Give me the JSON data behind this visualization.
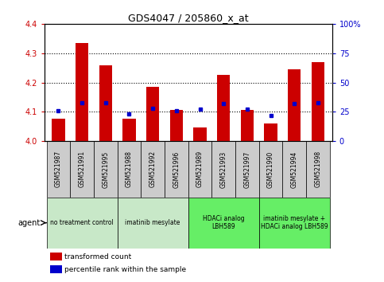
{
  "title": "GDS4047 / 205860_x_at",
  "samples": [
    "GSM521987",
    "GSM521991",
    "GSM521995",
    "GSM521988",
    "GSM521992",
    "GSM521996",
    "GSM521989",
    "GSM521993",
    "GSM521997",
    "GSM521990",
    "GSM521994",
    "GSM521998"
  ],
  "bar_values": [
    4.075,
    4.335,
    4.26,
    4.075,
    4.185,
    4.105,
    4.045,
    4.225,
    4.105,
    4.06,
    4.245,
    4.27
  ],
  "percentile_values": [
    26,
    33,
    33,
    23,
    28,
    26,
    27,
    32,
    27,
    22,
    32,
    33
  ],
  "bar_bottom": 4.0,
  "ylim": [
    4.0,
    4.4
  ],
  "y2lim": [
    0,
    100
  ],
  "yticks": [
    4.0,
    4.1,
    4.2,
    4.3,
    4.4
  ],
  "y2ticks": [
    0,
    25,
    50,
    75,
    100
  ],
  "bar_color": "#cc0000",
  "percentile_color": "#0000cc",
  "agent_groups": [
    {
      "label": "no treatment control",
      "start": 0,
      "end": 3,
      "color": "#c8e8c8"
    },
    {
      "label": "imatinib mesylate",
      "start": 3,
      "end": 6,
      "color": "#c8e8c8"
    },
    {
      "label": "HDACi analog\nLBH589",
      "start": 6,
      "end": 9,
      "color": "#66ee66"
    },
    {
      "label": "imatinib mesylate +\nHDACi analog LBH589",
      "start": 9,
      "end": 12,
      "color": "#66ee66"
    }
  ],
  "legend_bar_label": "transformed count",
  "legend_pct_label": "percentile rank within the sample",
  "bar_color_red": "#cc0000",
  "pct_color_blue": "#0000cc",
  "bar_width": 0.55,
  "sample_box_color": "#cccccc",
  "grid_yticks": [
    4.1,
    4.2,
    4.3
  ]
}
